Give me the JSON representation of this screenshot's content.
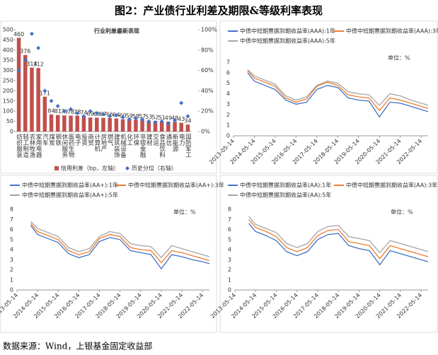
{
  "title": "图2：产业债行业利差及期限&等级利率表现",
  "source": "数据来源：Wind，上银基金固定收益部",
  "chart_data": [
    {
      "type": "bar",
      "title": "行业利差最新表现",
      "categories": [
        "纺织服装",
        "轻工制造",
        "农林牧渔",
        "家用电器",
        "汽车",
        "煤炭",
        "钢铁",
        "休闲服务",
        "医药生物",
        "电子",
        "投资",
        "商贸",
        "计算机",
        "房地产",
        "燃气",
        "建筑装饰",
        "机械设备",
        "化工",
        "环保",
        "非银金融",
        "建材",
        "交运",
        "食品饮料",
        "通信",
        "新能源",
        "电力",
        "国防军工"
      ],
      "series": [
        {
          "name": "信用利差（bp，左轴）",
          "color": "#c0504d",
          "values": [
            460,
            376,
            314,
            312,
            171,
            84,
            81,
            79,
            78,
            78,
            74,
            69,
            68,
            67,
            66,
            64,
            60,
            59,
            58,
            57,
            53,
            52,
            51,
            49,
            48,
            43,
            34
          ]
        },
        {
          "name": "历史分位（右轴）",
          "color": "#4472c4",
          "axis": "y2",
          "marker": "diamond",
          "values": [
            60,
            70,
            96,
            82,
            40,
            30,
            25,
            20,
            22,
            18,
            15,
            20,
            18,
            17,
            15,
            16,
            14,
            12,
            13,
            12,
            10,
            9,
            10,
            8,
            11,
            28,
            15
          ]
        }
      ],
      "ylim": [
        0,
        500
      ],
      "yticks": [
        0,
        50,
        100,
        150,
        200,
        250,
        300,
        350,
        400,
        450,
        500
      ],
      "y2lim": [
        0,
        100
      ],
      "y2ticks": [
        {
          "value": 0,
          "label": "0%"
        },
        {
          "value": 20,
          "label": "20%"
        },
        {
          "value": 40,
          "label": "40%"
        },
        {
          "value": 60,
          "label": "60%"
        },
        {
          "value": 80,
          "label": "80%"
        },
        {
          "value": 100,
          "label": "100%"
        }
      ]
    },
    {
      "type": "line",
      "annotation": "单位：%",
      "x": [
        "2014-01-14",
        "2014-05-14",
        "2014-11-14",
        "2015-05-14",
        "2015-11-14",
        "2016-05-14",
        "2016-11-14",
        "2017-05-14",
        "2017-11-14",
        "2018-05-14",
        "2018-11-14",
        "2019-05-14",
        "2019-11-14",
        "2020-05-14",
        "2020-11-14",
        "2021-05-14",
        "2021-11-14",
        "2022-05-14",
        "2022-09-14"
      ],
      "xlim": [
        "2013-05-14",
        "2022-09-14"
      ],
      "xticks": [
        "2013-05-14",
        "2014-05-14",
        "2015-05-14",
        "2016-05-14",
        "2017-05-14",
        "2018-05-14",
        "2019-05-14",
        "2020-05-14",
        "2021-05-14",
        "2022-05-14"
      ],
      "ylim": [
        0,
        7
      ],
      "yticks": [
        0,
        1,
        2,
        3,
        4,
        5,
        6,
        7
      ],
      "series": [
        {
          "name": "中债中短期票据到期收益率(AAA):1年",
          "color": "#4472c4",
          "values": [
            6.0,
            5.2,
            4.8,
            4.4,
            3.4,
            3.0,
            3.2,
            4.4,
            4.8,
            4.6,
            3.6,
            3.4,
            3.3,
            1.8,
            3.2,
            3.1,
            2.8,
            2.5,
            2.3
          ]
        },
        {
          "name": "中债中短期票据到期收益率(AAA):3年",
          "color": "#ed7d31",
          "values": [
            6.2,
            5.5,
            5.1,
            4.7,
            3.6,
            3.2,
            3.5,
            4.7,
            5.1,
            4.8,
            3.9,
            3.7,
            3.6,
            2.4,
            3.6,
            3.4,
            3.1,
            2.8,
            2.6
          ]
        },
        {
          "name": "中债中短期票据到期收益率(AAA):5年",
          "color": "#a5a5a5",
          "values": [
            6.3,
            5.7,
            5.3,
            4.9,
            3.8,
            3.4,
            3.7,
            4.8,
            5.2,
            5.0,
            4.2,
            4.0,
            3.9,
            2.9,
            4.0,
            3.8,
            3.4,
            3.1,
            2.9
          ]
        }
      ]
    },
    {
      "type": "line",
      "annotation": "单位：%",
      "x": [
        "2014-01-14",
        "2014-05-14",
        "2014-11-14",
        "2015-05-14",
        "2015-11-14",
        "2016-05-14",
        "2016-11-14",
        "2017-05-14",
        "2017-11-14",
        "2018-05-14",
        "2018-11-14",
        "2019-05-14",
        "2019-11-14",
        "2020-05-14",
        "2020-11-14",
        "2021-05-14",
        "2021-11-14",
        "2022-05-14",
        "2022-09-14"
      ],
      "xlim": [
        "2013-05-14",
        "2022-09-14"
      ],
      "xticks": [
        "2013-05-14",
        "2014-05-14",
        "2015-05-14",
        "2016-05-14",
        "2017-05-14",
        "2018-05-14",
        "2019-05-14",
        "2020-05-14",
        "2021-05-14",
        "2022-05-14"
      ],
      "ylim": [
        0,
        8
      ],
      "yticks": [
        0,
        1,
        2,
        3,
        4,
        5,
        6,
        7,
        8
      ],
      "series": [
        {
          "name": "中债中短期票据到期收益率(AA+):1年",
          "color": "#4472c4",
          "values": [
            6.4,
            5.5,
            5.1,
            4.7,
            3.6,
            3.2,
            3.5,
            4.8,
            5.2,
            5.0,
            3.9,
            3.7,
            3.5,
            2.1,
            3.5,
            3.3,
            3.0,
            2.8,
            2.6
          ]
        },
        {
          "name": "中债中短期票据到期收益率(AA+):3年",
          "color": "#ed7d31",
          "values": [
            6.6,
            5.8,
            5.4,
            5.0,
            3.9,
            3.5,
            3.8,
            5.1,
            5.5,
            5.3,
            4.2,
            4.0,
            3.9,
            2.7,
            3.9,
            3.7,
            3.4,
            3.1,
            2.9
          ]
        },
        {
          "name": "中债中短期票据到期收益率(AA+):5年",
          "color": "#a5a5a5",
          "values": [
            6.8,
            6.1,
            5.7,
            5.3,
            4.2,
            3.8,
            4.1,
            5.3,
            5.8,
            5.6,
            4.6,
            4.4,
            4.3,
            3.2,
            4.4,
            4.1,
            3.8,
            3.5,
            3.3
          ]
        }
      ]
    },
    {
      "type": "line",
      "annotation": "单位：%",
      "x": [
        "2014-01-14",
        "2014-05-14",
        "2014-11-14",
        "2015-05-14",
        "2015-11-14",
        "2016-05-14",
        "2016-11-14",
        "2017-05-14",
        "2017-11-14",
        "2018-05-14",
        "2018-11-14",
        "2019-05-14",
        "2019-11-14",
        "2020-05-14",
        "2020-11-14",
        "2021-05-14",
        "2021-11-14",
        "2022-05-14",
        "2022-09-14"
      ],
      "xlim": [
        "2013-05-14",
        "2022-09-14"
      ],
      "xticks": [
        "2013-05-14",
        "2014-05-14",
        "2015-05-14",
        "2016-05-14",
        "2017-05-14",
        "2018-05-14",
        "2019-05-14",
        "2020-05-14",
        "2021-05-14",
        "2022-05-14"
      ],
      "ylim": [
        0,
        8
      ],
      "yticks": [
        0,
        1,
        2,
        3,
        4,
        5,
        6,
        7,
        8
      ],
      "series": [
        {
          "name": "中债中短期票据到期收益率(AA):1年",
          "color": "#4472c4",
          "values": [
            6.6,
            5.8,
            5.4,
            4.9,
            3.8,
            3.4,
            3.8,
            5.0,
            5.5,
            5.6,
            4.4,
            4.1,
            3.9,
            2.5,
            3.9,
            3.6,
            3.3,
            3.0,
            2.8
          ]
        },
        {
          "name": "中债中短期票据到期收益率(AA):3年",
          "color": "#ed7d31",
          "values": [
            7.0,
            6.2,
            5.8,
            5.3,
            4.2,
            3.8,
            4.2,
            5.4,
            5.9,
            6.0,
            4.8,
            4.6,
            4.4,
            3.1,
            4.4,
            4.1,
            3.8,
            3.5,
            3.3
          ]
        },
        {
          "name": "中债中短期票据到期收益率(AA):5年",
          "color": "#a5a5a5",
          "values": [
            7.3,
            6.5,
            6.1,
            5.7,
            4.6,
            4.2,
            4.6,
            5.8,
            6.3,
            6.4,
            5.3,
            5.1,
            4.9,
            3.7,
            4.9,
            4.6,
            4.3,
            4.0,
            3.8
          ]
        }
      ]
    }
  ]
}
